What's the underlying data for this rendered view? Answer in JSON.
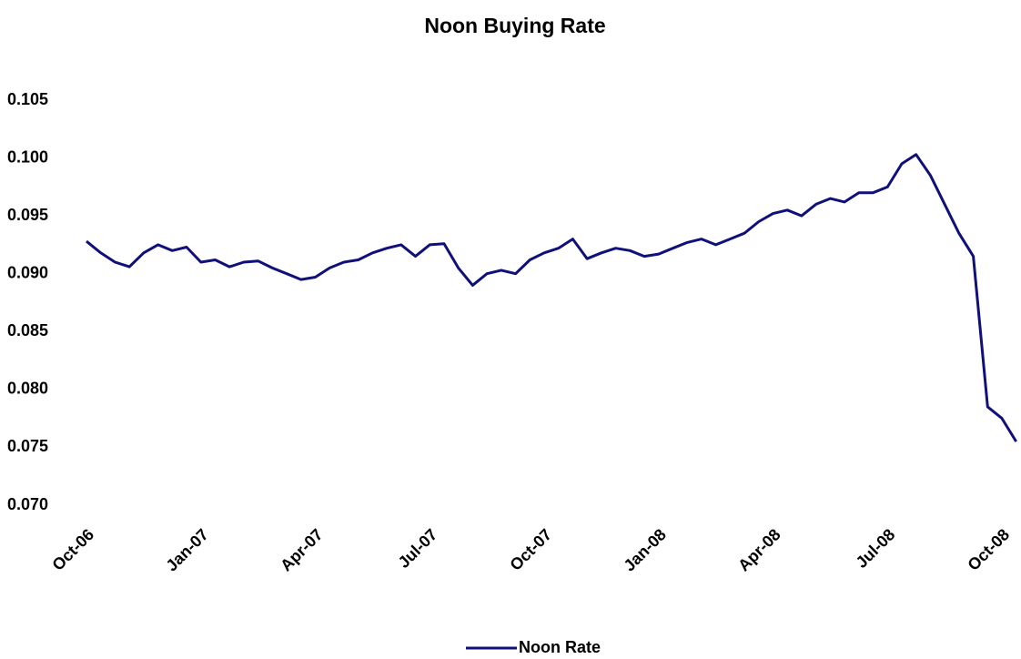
{
  "chart_data": {
    "type": "line",
    "title": "Noon Buying Rate",
    "categories": [
      "Oct-06",
      null,
      null,
      null,
      null,
      null,
      null,
      null,
      "Jan-07",
      null,
      null,
      null,
      null,
      null,
      null,
      null,
      "Apr-07",
      null,
      null,
      null,
      null,
      null,
      null,
      null,
      "Jul-07",
      null,
      null,
      null,
      null,
      null,
      null,
      null,
      "Oct-07",
      null,
      null,
      null,
      null,
      null,
      null,
      null,
      "Jan-08",
      null,
      null,
      null,
      null,
      null,
      null,
      null,
      "Apr-08",
      null,
      null,
      null,
      null,
      null,
      null,
      null,
      "Jul-08",
      null,
      null,
      null,
      null,
      null,
      null,
      null,
      "Oct-08",
      null
    ],
    "series": [
      {
        "name": "Noon Rate",
        "color": "#10107a",
        "values": [
          0.0928,
          0.0918,
          0.091,
          0.0906,
          0.0918,
          0.0925,
          0.092,
          0.0923,
          0.091,
          0.0912,
          0.0906,
          0.091,
          0.0911,
          0.0905,
          0.09,
          0.0895,
          0.0897,
          0.0905,
          0.091,
          0.0912,
          0.0918,
          0.0922,
          0.0925,
          0.0915,
          0.0925,
          0.0926,
          0.0905,
          0.089,
          0.09,
          0.0903,
          0.09,
          0.0912,
          0.0918,
          0.0922,
          0.093,
          0.0913,
          0.0918,
          0.0922,
          0.092,
          0.0915,
          0.0917,
          0.0922,
          0.0927,
          0.093,
          0.0925,
          0.093,
          0.0935,
          0.0945,
          0.0952,
          0.0955,
          0.095,
          0.096,
          0.0965,
          0.0962,
          0.097,
          0.097,
          0.0975,
          0.0995,
          0.1003,
          0.0985,
          0.096,
          0.0935,
          0.0915,
          0.0785,
          0.0775,
          0.0755
        ]
      }
    ],
    "ylim": [
      0.07,
      0.105
    ],
    "yticks": [
      {
        "value": 0.07,
        "label": "0.070"
      },
      {
        "value": 0.075,
        "label": "0.075"
      },
      {
        "value": 0.08,
        "label": "0.080"
      },
      {
        "value": 0.085,
        "label": "0.085"
      },
      {
        "value": 0.09,
        "label": "0.090"
      },
      {
        "value": 0.095,
        "label": "0.095"
      },
      {
        "value": 0.1,
        "label": "0.100"
      },
      {
        "value": 0.105,
        "label": "0.105"
      }
    ],
    "grid": false,
    "legend": "bottom"
  }
}
